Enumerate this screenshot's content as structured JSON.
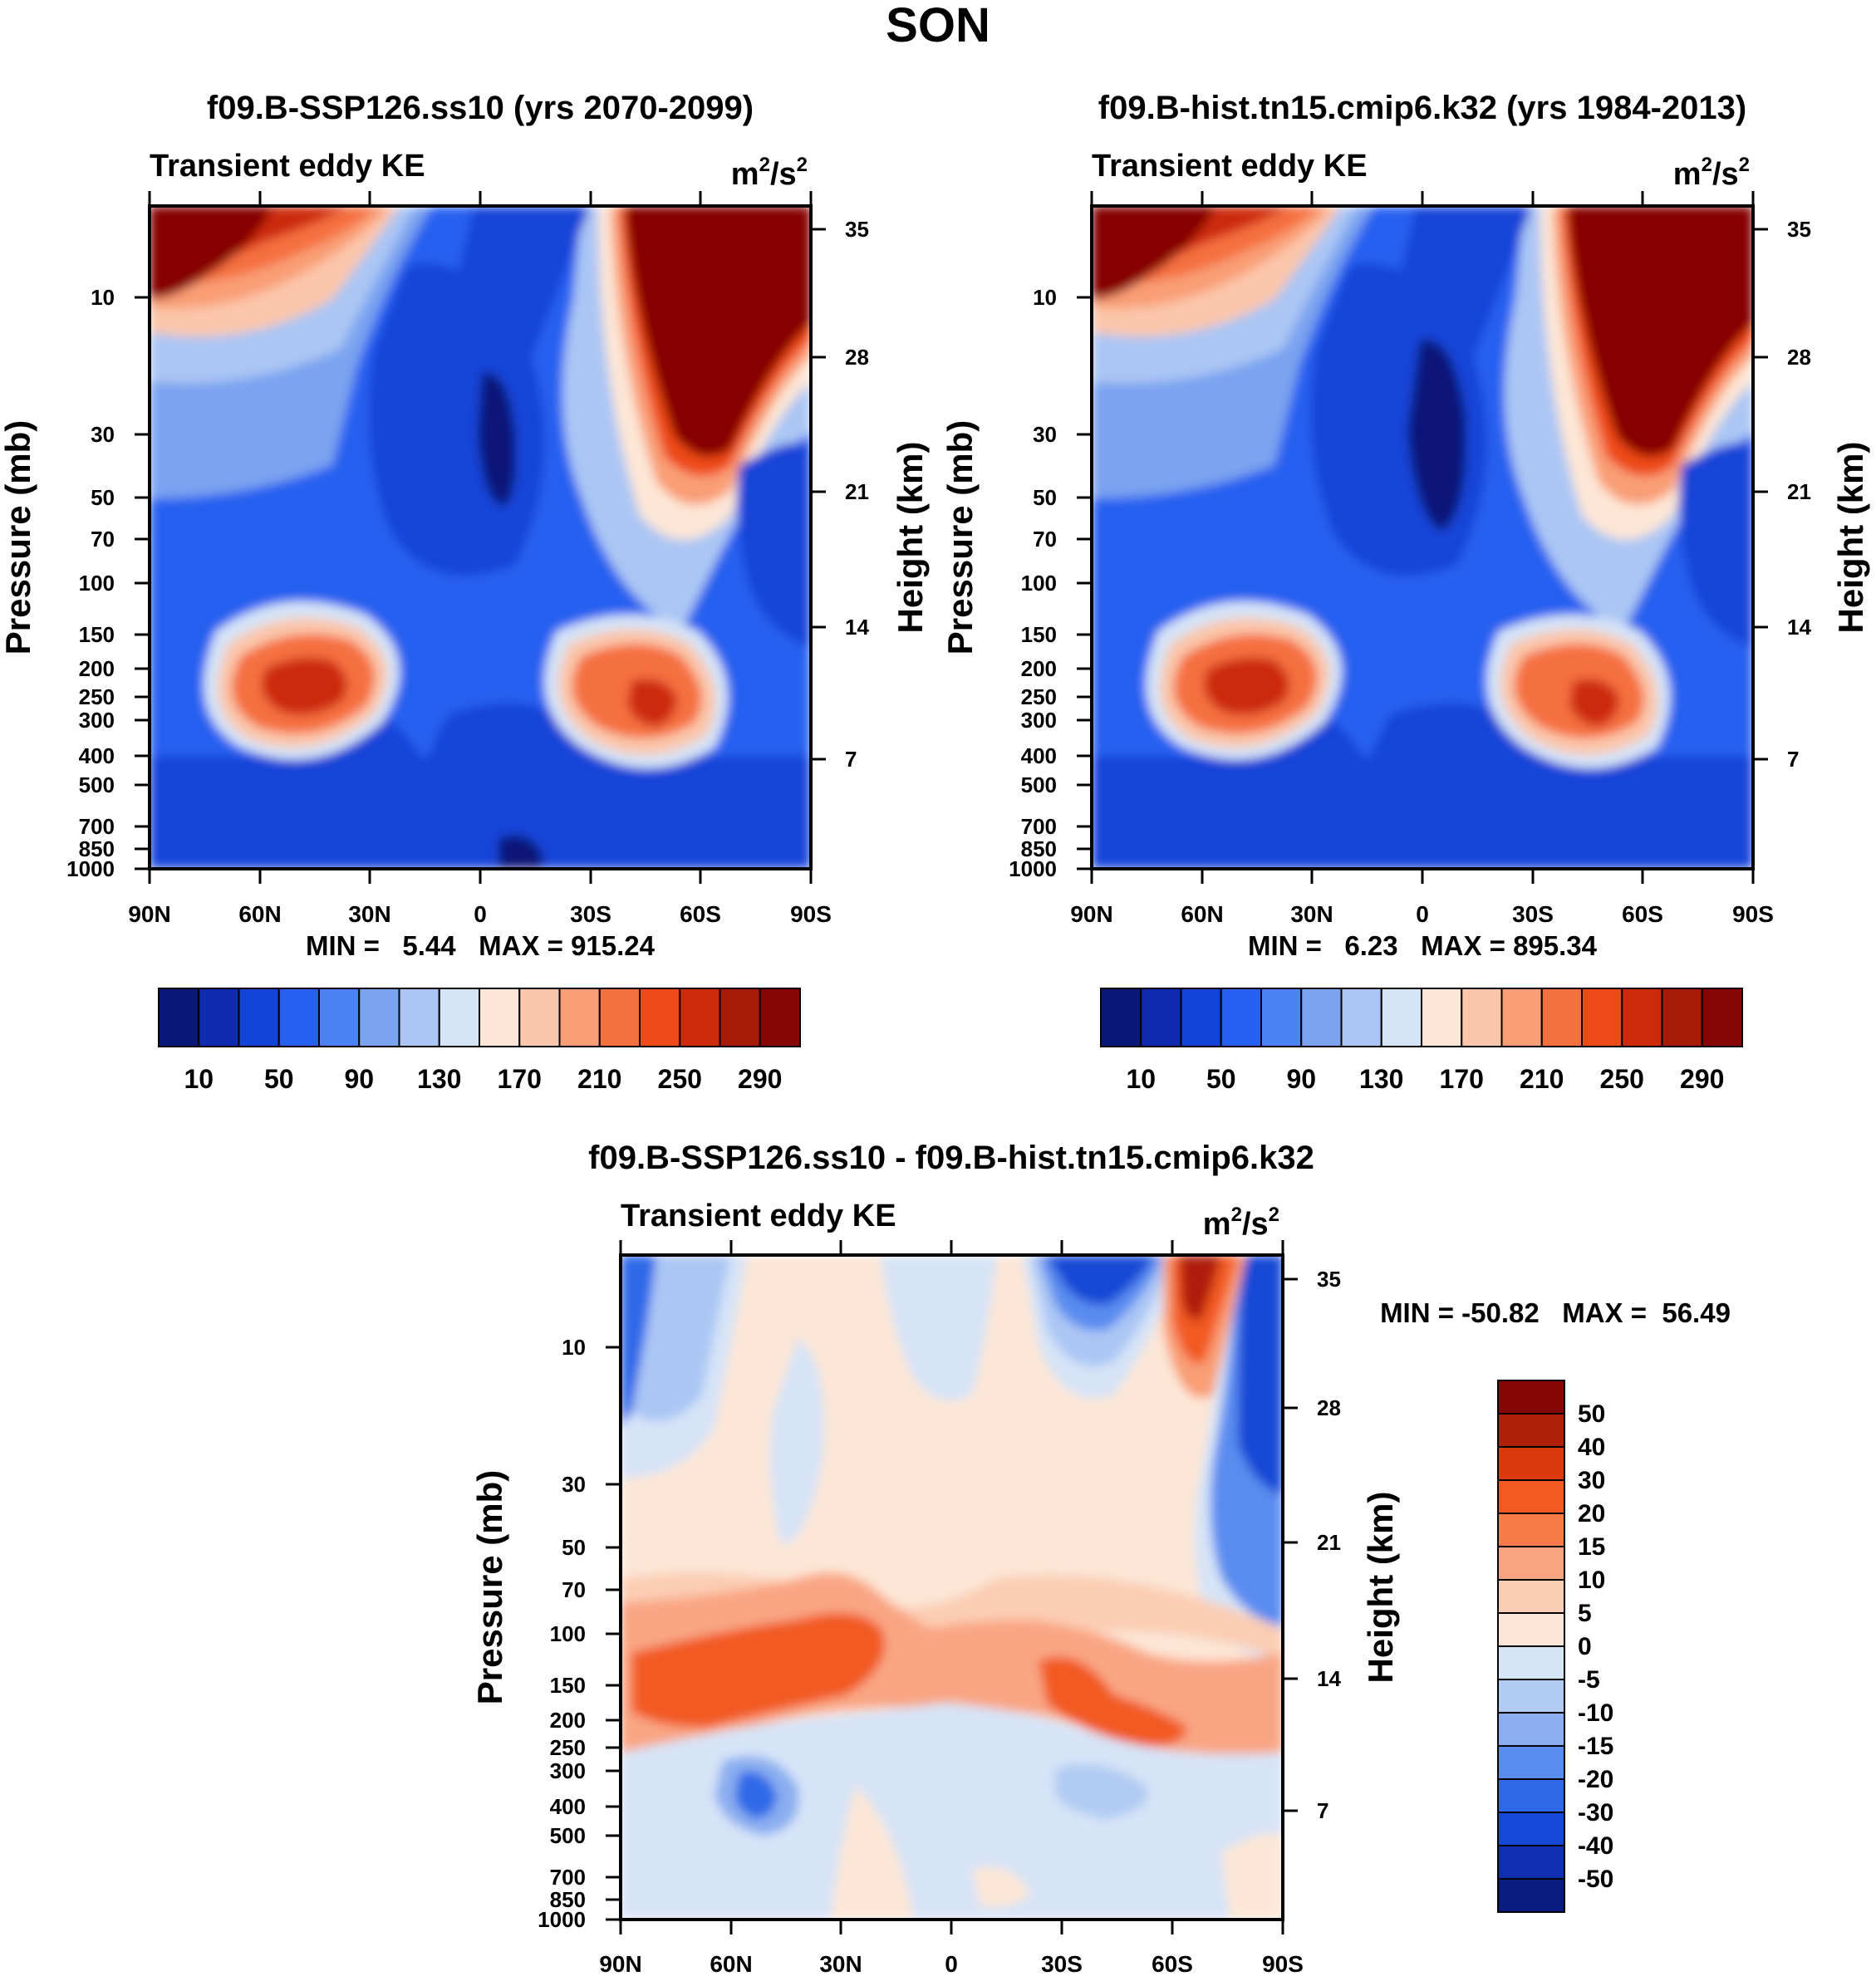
{
  "figure_title": "SON",
  "chart_data": [
    {
      "type": "heatmap",
      "title": "f09.B-SSP126.ss10 (yrs 2070-2099)",
      "left_string": "Transient eddy KE",
      "units": {
        "base": "m",
        "exp1": "2",
        "mid": "/s",
        "exp2": "2"
      },
      "ylabel": "Pressure (mb)",
      "ylabel_right": "Height (km)",
      "x_ticks": [
        "90N",
        "60N",
        "30N",
        "0",
        "30S",
        "60S",
        "90S"
      ],
      "pressure_ticks": [
        "10",
        "30",
        "50",
        "70",
        "100",
        "150",
        "200",
        "250",
        "300",
        "400",
        "500",
        "700",
        "850",
        "1000"
      ],
      "height_ticks": [
        "35",
        "28",
        "21",
        "14",
        "7"
      ],
      "min_max": "MIN =   5.44   MAX = 915.24",
      "min": 5.44,
      "max": 915.24,
      "colorbar_labels": [
        "10",
        "50",
        "90",
        "130",
        "170",
        "210",
        "250",
        "290"
      ],
      "colorbar_orientation": "horizontal",
      "features": "jet maxima near 45N 250mb and 50S 300mb; stratospheric maxima over southern and northern high latitudes"
    },
    {
      "type": "heatmap",
      "title": "f09.B-hist.tn15.cmip6.k32 (yrs 1984-2013)",
      "left_string": "Transient eddy KE",
      "units": {
        "base": "m",
        "exp1": "2",
        "mid": "/s",
        "exp2": "2"
      },
      "ylabel": "Pressure (mb)",
      "ylabel_right": "Height (km)",
      "x_ticks": [
        "90N",
        "60N",
        "30N",
        "0",
        "30S",
        "60S",
        "90S"
      ],
      "pressure_ticks": [
        "10",
        "30",
        "50",
        "70",
        "100",
        "150",
        "200",
        "250",
        "300",
        "400",
        "500",
        "700",
        "850",
        "1000"
      ],
      "height_ticks": [
        "35",
        "28",
        "21",
        "14",
        "7"
      ],
      "min_max": "MIN =   6.23   MAX = 895.34",
      "min": 6.23,
      "max": 895.34,
      "colorbar_labels": [
        "10",
        "50",
        "90",
        "130",
        "170",
        "210",
        "250",
        "290"
      ],
      "colorbar_orientation": "horizontal"
    },
    {
      "type": "heatmap",
      "title": "f09.B-SSP126.ss10 - f09.B-hist.tn15.cmip6.k32",
      "left_string": "Transient eddy KE",
      "units": {
        "base": "m",
        "exp1": "2",
        "mid": "/s",
        "exp2": "2"
      },
      "ylabel": "Pressure (mb)",
      "ylabel_right": "Height (km)",
      "x_ticks": [
        "90N",
        "60N",
        "30N",
        "0",
        "30S",
        "60S",
        "90S"
      ],
      "pressure_ticks": [
        "10",
        "30",
        "50",
        "70",
        "100",
        "150",
        "200",
        "250",
        "300",
        "400",
        "500",
        "700",
        "850",
        "1000"
      ],
      "height_ticks": [
        "35",
        "28",
        "21",
        "14",
        "7"
      ],
      "min_max": "MIN = -50.82   MAX =  56.49",
      "min": -50.82,
      "max": 56.49,
      "colorbar_labels": [
        "50",
        "40",
        "30",
        "20",
        "15",
        "10",
        "5",
        "0",
        "-5",
        "-10",
        "-15",
        "-20",
        "-30",
        "-40",
        "-50"
      ],
      "colorbar_orientation": "vertical"
    }
  ],
  "colors": {
    "seq_palette": [
      "#0a1878",
      "#0f2cb0",
      "#1244d8",
      "#2660f0",
      "#4a82f2",
      "#7aa3f0",
      "#abc6f4",
      "#d6e4f7",
      "#fde6d6",
      "#fbc6aa",
      "#f99e76",
      "#f5703f",
      "#ee4a18",
      "#cc2a0a",
      "#a71a08",
      "#860606"
    ],
    "div_palette": [
      "#860606",
      "#b01f0a",
      "#dc3810",
      "#f25a22",
      "#f77c4a",
      "#f9a583",
      "#fbcdb4",
      "#fde6d6",
      "#d6e4f7",
      "#b1cbf3",
      "#8aaef0",
      "#5a8cf0",
      "#2f69e8",
      "#1448d6",
      "#0f2fb2",
      "#0a1b7f"
    ]
  }
}
